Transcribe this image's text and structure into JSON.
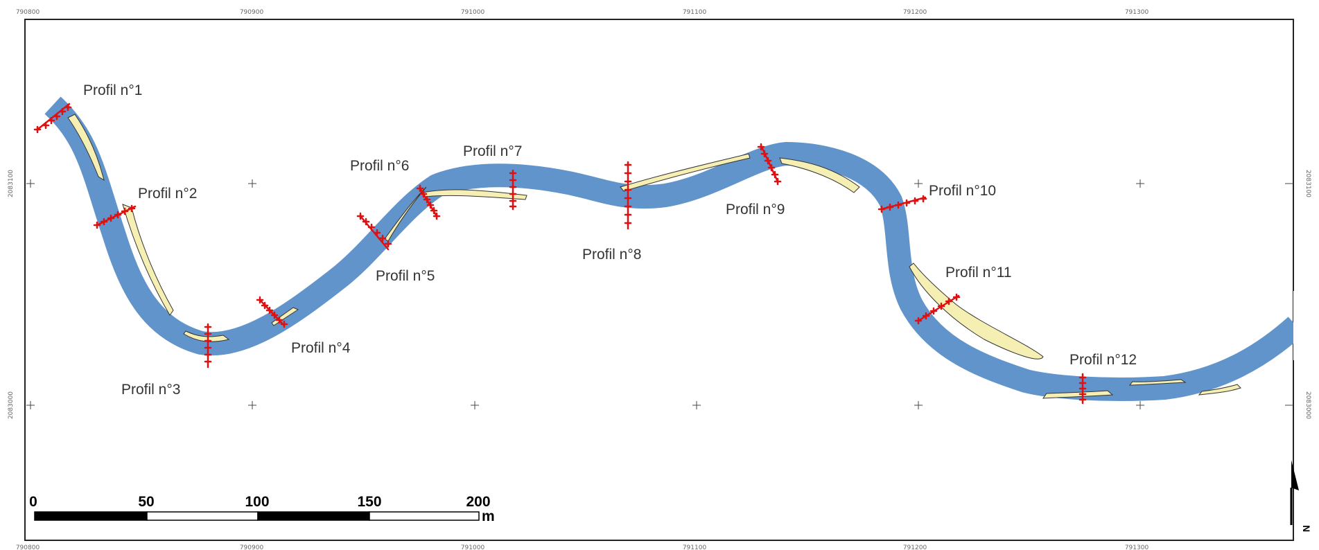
{
  "map": {
    "x_ticks": [
      "790800",
      "790900",
      "791000",
      "791100",
      "791200",
      "791300"
    ],
    "y_ticks": [
      "2083100",
      "2083000"
    ],
    "profiles": [
      {
        "label": "Profil n°1"
      },
      {
        "label": "Profil n°2"
      },
      {
        "label": "Profil n°3"
      },
      {
        "label": "Profil n°4"
      },
      {
        "label": "Profil n°5"
      },
      {
        "label": "Profil n°6"
      },
      {
        "label": "Profil n°7"
      },
      {
        "label": "Profil n°8"
      },
      {
        "label": "Profil n°9"
      },
      {
        "label": "Profil n°10"
      },
      {
        "label": "Profil n°11"
      },
      {
        "label": "Profil n°12"
      }
    ],
    "scale_bar": {
      "labels": [
        "0",
        "50",
        "100",
        "150",
        "200"
      ],
      "unit": "m"
    },
    "north_arrow": {
      "label": "N",
      "icon": "north-arrow-icon"
    },
    "colors": {
      "river": "#6294cc",
      "sandbar": "#f6efb4",
      "profile_marker": "#e01010",
      "frame": "#222222"
    }
  }
}
